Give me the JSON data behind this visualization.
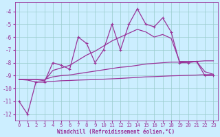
{
  "xlabel": "Windchill (Refroidissement éolien,°C)",
  "xlim": [
    -0.5,
    23.5
  ],
  "ylim": [
    -12.5,
    -3.3
  ],
  "yticks": [
    -12,
    -11,
    -10,
    -9,
    -8,
    -7,
    -6,
    -5,
    -4
  ],
  "xticks": [
    0,
    1,
    2,
    3,
    4,
    5,
    6,
    7,
    8,
    9,
    10,
    11,
    12,
    13,
    14,
    15,
    16,
    17,
    18,
    19,
    20,
    21,
    22,
    23
  ],
  "bg_color": "#cceeff",
  "grid_color": "#99cccc",
  "line_color": "#993399",
  "series": [
    {
      "x": [
        0,
        1,
        2,
        3,
        4,
        5,
        6,
        7,
        8,
        9,
        10,
        11,
        12,
        13,
        14,
        15,
        16,
        17,
        18,
        19,
        20,
        21,
        22,
        23
      ],
      "y": [
        -11.0,
        -12.0,
        -9.5,
        -9.5,
        -8.0,
        -8.2,
        -8.5,
        -6.0,
        -6.5,
        -8.0,
        -7.0,
        -5.0,
        -7.0,
        -5.0,
        -3.8,
        -5.0,
        -5.2,
        -4.5,
        -5.6,
        -8.0,
        -8.0,
        -7.9,
        -9.0,
        -9.0
      ],
      "marker": "+",
      "markersize": 3.5,
      "lw": 0.9,
      "zorder": 4
    },
    {
      "x": [
        0,
        1,
        2,
        3,
        4,
        5,
        6,
        7,
        8,
        9,
        10,
        11,
        12,
        13,
        14,
        15,
        16,
        17,
        18,
        19,
        20,
        21,
        22,
        23
      ],
      "y": [
        -9.3,
        -9.3,
        -9.3,
        -9.4,
        -8.6,
        -8.4,
        -8.2,
        -7.8,
        -7.4,
        -7.1,
        -6.7,
        -6.3,
        -6.0,
        -5.7,
        -5.4,
        -5.6,
        -6.0,
        -5.8,
        -6.1,
        -7.9,
        -7.9,
        -7.9,
        -8.7,
        -8.9
      ],
      "marker": null,
      "markersize": 0,
      "lw": 0.9,
      "zorder": 3
    },
    {
      "x": [
        0,
        1,
        2,
        3,
        4,
        5,
        6,
        7,
        8,
        9,
        10,
        11,
        12,
        13,
        14,
        15,
        16,
        17,
        18,
        19,
        20,
        21,
        22,
        23
      ],
      "y": [
        -9.3,
        -9.3,
        -9.3,
        -9.3,
        -9.1,
        -9.0,
        -8.95,
        -8.85,
        -8.75,
        -8.65,
        -8.55,
        -8.45,
        -8.35,
        -8.3,
        -8.2,
        -8.1,
        -8.05,
        -8.0,
        -7.95,
        -7.95,
        -7.9,
        -7.9,
        -7.85,
        -7.85
      ],
      "marker": null,
      "markersize": 0,
      "lw": 0.9,
      "zorder": 3
    },
    {
      "x": [
        0,
        1,
        2,
        3,
        4,
        5,
        6,
        7,
        8,
        9,
        10,
        11,
        12,
        13,
        14,
        15,
        16,
        17,
        18,
        19,
        20,
        21,
        22,
        23
      ],
      "y": [
        -9.3,
        -9.35,
        -9.5,
        -9.5,
        -9.45,
        -9.4,
        -9.38,
        -9.35,
        -9.33,
        -9.31,
        -9.28,
        -9.25,
        -9.22,
        -9.18,
        -9.14,
        -9.1,
        -9.08,
        -9.05,
        -9.02,
        -9.0,
        -8.98,
        -8.96,
        -8.93,
        -8.9
      ],
      "marker": null,
      "markersize": 0,
      "lw": 0.9,
      "zorder": 3
    }
  ]
}
